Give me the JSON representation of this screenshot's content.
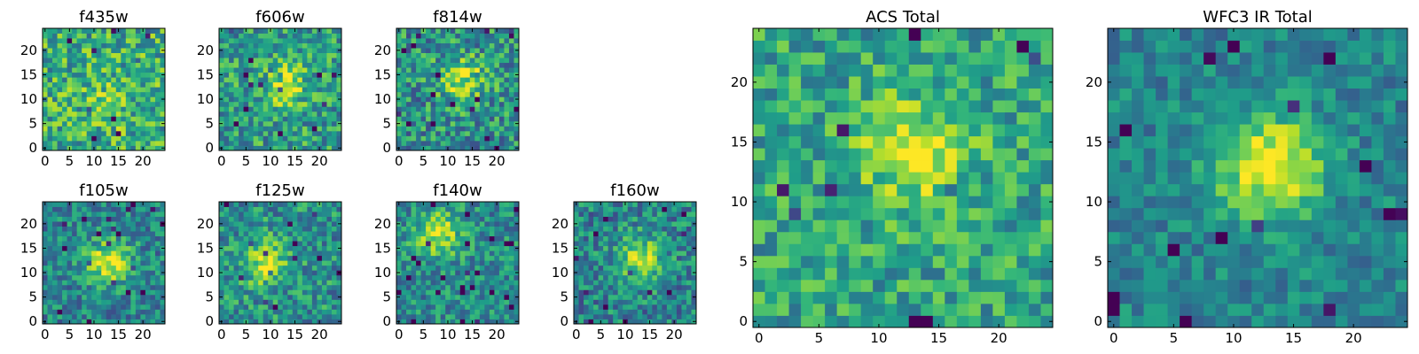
{
  "chart_data": [
    {
      "type": "heatmap",
      "title": "f435w",
      "xticks": [
        "0",
        "5",
        "10",
        "15",
        "20"
      ],
      "yticks": [
        "0",
        "5",
        "10",
        "15",
        "20"
      ],
      "xlim": [
        -0.5,
        24.5
      ],
      "ylim": [
        -0.5,
        24.5
      ],
      "grid_size": [
        25,
        25
      ],
      "colormap": "viridis",
      "seed": 11,
      "peak": [
        13,
        9
      ],
      "peak_strength": 0.15,
      "noise": 0.28,
      "base": 0.62
    },
    {
      "type": "heatmap",
      "title": "f606w",
      "xticks": [
        "0",
        "5",
        "10",
        "15",
        "20"
      ],
      "yticks": [
        "0",
        "5",
        "10",
        "15",
        "20"
      ],
      "xlim": [
        -0.5,
        24.5
      ],
      "ylim": [
        -0.5,
        24.5
      ],
      "grid_size": [
        25,
        25
      ],
      "colormap": "viridis",
      "seed": 23,
      "peak": [
        13,
        13
      ],
      "peak_strength": 0.35,
      "noise": 0.26,
      "base": 0.55
    },
    {
      "type": "heatmap",
      "title": "f814w",
      "xticks": [
        "0",
        "5",
        "10",
        "15",
        "20"
      ],
      "yticks": [
        "0",
        "5",
        "10",
        "15",
        "20"
      ],
      "xlim": [
        -0.5,
        24.5
      ],
      "ylim": [
        -0.5,
        24.5
      ],
      "grid_size": [
        25,
        25
      ],
      "colormap": "viridis",
      "seed": 37,
      "peak": [
        13,
        14
      ],
      "peak_strength": 0.4,
      "noise": 0.28,
      "base": 0.5
    },
    {
      "type": "heatmap",
      "title": "f105w",
      "xticks": [
        "0",
        "5",
        "10",
        "15",
        "20"
      ],
      "yticks": [
        "0",
        "5",
        "10",
        "15",
        "20"
      ],
      "xlim": [
        -0.5,
        24.5
      ],
      "ylim": [
        -0.5,
        24.5
      ],
      "grid_size": [
        25,
        25
      ],
      "colormap": "viridis",
      "seed": 41,
      "peak": [
        13,
        12
      ],
      "peak_strength": 0.5,
      "noise": 0.22,
      "base": 0.45
    },
    {
      "type": "heatmap",
      "title": "f125w",
      "xticks": [
        "0",
        "5",
        "10",
        "15",
        "20"
      ],
      "yticks": [
        "0",
        "5",
        "10",
        "15",
        "20"
      ],
      "xlim": [
        -0.5,
        24.5
      ],
      "ylim": [
        -0.5,
        24.5
      ],
      "grid_size": [
        25,
        25
      ],
      "colormap": "viridis",
      "seed": 53,
      "peak": [
        9,
        12
      ],
      "peak_strength": 0.4,
      "noise": 0.24,
      "base": 0.5
    },
    {
      "type": "heatmap",
      "title": "f140w",
      "xticks": [
        "0",
        "5",
        "10",
        "15",
        "20"
      ],
      "yticks": [
        "0",
        "5",
        "10",
        "15",
        "20"
      ],
      "xlim": [
        -0.5,
        24.5
      ],
      "ylim": [
        -0.5,
        24.5
      ],
      "grid_size": [
        25,
        25
      ],
      "colormap": "viridis",
      "seed": 67,
      "peak": [
        8,
        18
      ],
      "peak_strength": 0.45,
      "noise": 0.22,
      "base": 0.48
    },
    {
      "type": "heatmap",
      "title": "f160w",
      "xticks": [
        "0",
        "5",
        "10",
        "15",
        "20"
      ],
      "yticks": [
        "0",
        "5",
        "10",
        "15",
        "20"
      ],
      "xlim": [
        -0.5,
        24.5
      ],
      "ylim": [
        -0.5,
        24.5
      ],
      "grid_size": [
        25,
        25
      ],
      "colormap": "viridis",
      "seed": 79,
      "peak": [
        13,
        13
      ],
      "peak_strength": 0.45,
      "noise": 0.24,
      "base": 0.45
    },
    {
      "type": "heatmap",
      "title": "ACS Total",
      "xticks": [
        "0",
        "5",
        "10",
        "15",
        "20"
      ],
      "yticks": [
        "0",
        "5",
        "10",
        "15",
        "20"
      ],
      "xlim": [
        -0.5,
        24.5
      ],
      "ylim": [
        -0.5,
        24.5
      ],
      "grid_size": [
        25,
        25
      ],
      "colormap": "viridis",
      "seed": 97,
      "peak": [
        13,
        14
      ],
      "peak_strength": 0.35,
      "noise": 0.22,
      "base": 0.58
    },
    {
      "type": "heatmap",
      "title": "WFC3 IR Total",
      "xticks": [
        "0",
        "5",
        "10",
        "15",
        "20"
      ],
      "yticks": [
        "0",
        "5",
        "10",
        "15",
        "20"
      ],
      "xlim": [
        -0.5,
        24.5
      ],
      "ylim": [
        -0.5,
        24.5
      ],
      "grid_size": [
        25,
        25
      ],
      "colormap": "viridis",
      "seed": 101,
      "peak": [
        13,
        13
      ],
      "peak_strength": 0.55,
      "noise": 0.16,
      "base": 0.45
    }
  ]
}
